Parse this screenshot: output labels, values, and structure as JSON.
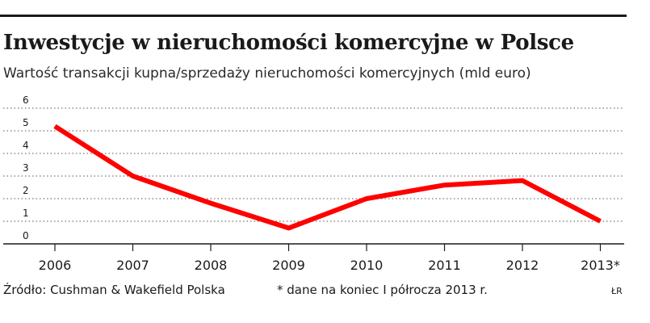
{
  "header": {
    "title": "Inwestycje w nieruchomości komercyjne w Polsce",
    "subtitle": "Wartość transakcji kupna/sprzedaży nieruchomości komercyjnych (mld euro)"
  },
  "footer": {
    "source": "Źródło: Cushman & Wakefield Polska",
    "note": "* dane na koniec I półrocza 2013 r.",
    "signature": "ŁR"
  },
  "colors": {
    "line": "#ff0000",
    "grid": "#555555",
    "text": "#1a1a1a"
  },
  "chart_data": {
    "type": "line",
    "title": "Inwestycje w nieruchomości komercyjne w Polsce",
    "subtitle": "Wartość transakcji kupna/sprzedaży nieruchomości komercyjnych (mld euro)",
    "categories": [
      "2006",
      "2007",
      "2008",
      "2009",
      "2010",
      "2011",
      "2012",
      "2013*"
    ],
    "series": [
      {
        "values": [
          5.2,
          3.0,
          1.8,
          0.7,
          2.0,
          2.6,
          2.8,
          1.0
        ]
      }
    ],
    "ylim": [
      0,
      6
    ],
    "yticks": [
      "0",
      "1",
      "2",
      "3",
      "4",
      "5",
      "6"
    ],
    "grid": "horizontal dotted",
    "legend": "none"
  }
}
